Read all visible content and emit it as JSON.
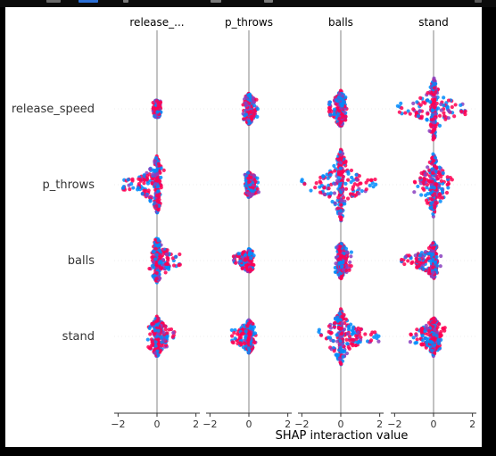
{
  "chart_data": {
    "type": "scatter",
    "subtype": "shap-interaction-summary",
    "title": "",
    "xlabel": "SHAP interaction value",
    "ylabel": "",
    "features": [
      "release_speed",
      "p_throws",
      "balls",
      "stand"
    ],
    "column_titles": [
      "release_...",
      "p_throws",
      "balls",
      "stand"
    ],
    "xlim": [
      -2.2,
      2.2
    ],
    "xticks": [
      -2,
      0,
      2
    ],
    "xtick_labels": [
      "−2",
      "0",
      "2"
    ],
    "colors": {
      "low": "#008bfb",
      "high": "#ff0052",
      "mid": "#8a3fc0",
      "zero_line": "#999999",
      "grid": "#cccccc",
      "axis": "#333333",
      "text": "#333333"
    },
    "cells": [
      [
        {
          "spread": [
            -0.2,
            0.2
          ],
          "height": 0.9,
          "peak": 0.15
        },
        {
          "spread": [
            -0.3,
            0.5
          ],
          "height": 0.9,
          "peak": 0.4
        },
        {
          "spread": [
            -0.6,
            0.45
          ],
          "height": 0.9,
          "peak": 0.5
        },
        {
          "spread": [
            -1.9,
            1.8
          ],
          "height": 0.9,
          "peak": 1.0
        }
      ],
      [
        {
          "spread": [
            -1.8,
            0.4
          ],
          "height": 0.9,
          "peak": 0.9
        },
        {
          "spread": [
            -0.2,
            0.5
          ],
          "height": 0.9,
          "peak": 0.3
        },
        {
          "spread": [
            -2.1,
            1.8
          ],
          "height": 0.9,
          "peak": 1.2
        },
        {
          "spread": [
            -1.0,
            1.0
          ],
          "height": 0.9,
          "peak": 1.0
        }
      ],
      [
        {
          "spread": [
            -0.4,
            1.2
          ],
          "height": 0.9,
          "peak": 0.7
        },
        {
          "spread": [
            -0.8,
            0.3
          ],
          "height": 0.9,
          "peak": 0.25
        },
        {
          "spread": [
            -0.3,
            0.6
          ],
          "height": 0.9,
          "peak": 0.5
        },
        {
          "spread": [
            -1.7,
            0.4
          ],
          "height": 0.9,
          "peak": 0.5
        }
      ],
      [
        {
          "spread": [
            -0.5,
            0.95
          ],
          "height": 0.9,
          "peak": 0.6
        },
        {
          "spread": [
            -0.9,
            0.4
          ],
          "height": 0.9,
          "peak": 0.45
        },
        {
          "spread": [
            -1.2,
            1.95
          ],
          "height": 0.9,
          "peak": 0.9
        },
        {
          "spread": [
            -1.2,
            0.6
          ],
          "height": 0.9,
          "peak": 0.55
        }
      ]
    ]
  }
}
